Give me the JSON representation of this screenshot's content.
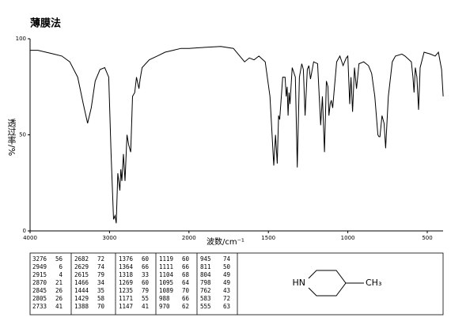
{
  "header": {
    "title": "薄膜法"
  },
  "chart_data": {
    "type": "line",
    "ylabel": "透过率/%",
    "xlabel": "波数/cm⁻¹",
    "color": "#000000",
    "xlim": [
      4000,
      400
    ],
    "xticks": [
      4000,
      3000,
      2000,
      1500,
      1000,
      500
    ],
    "ylim": [
      0,
      100
    ],
    "yticks": [
      0,
      50,
      100
    ],
    "x": [
      4000,
      3900,
      3800,
      3700,
      3600,
      3500,
      3400,
      3330,
      3276,
      3230,
      3180,
      3120,
      3060,
      3010,
      2980,
      2949,
      2930,
      2915,
      2895,
      2870,
      2858,
      2845,
      2825,
      2805,
      2780,
      2760,
      2733,
      2710,
      2682,
      2660,
      2629,
      2615,
      2590,
      2500,
      2400,
      2300,
      2200,
      2100,
      2000,
      1900,
      1800,
      1720,
      1680,
      1650,
      1620,
      1590,
      1560,
      1520,
      1490,
      1466,
      1455,
      1444,
      1436,
      1429,
      1410,
      1395,
      1388,
      1382,
      1376,
      1370,
      1364,
      1350,
      1330,
      1318,
      1305,
      1290,
      1280,
      1269,
      1255,
      1245,
      1235,
      1215,
      1190,
      1171,
      1160,
      1147,
      1135,
      1125,
      1119,
      1111,
      1104,
      1095,
      1089,
      1070,
      1050,
      1030,
      1010,
      1000,
      988,
      980,
      970,
      958,
      945,
      930,
      900,
      870,
      850,
      830,
      811,
      804,
      798,
      785,
      772,
      762,
      745,
      720,
      700,
      660,
      640,
      600,
      590,
      583,
      575,
      565,
      555,
      545,
      520,
      480,
      450,
      430,
      410,
      400
    ],
    "values": [
      94,
      94,
      93,
      92,
      91,
      88,
      80,
      66,
      56,
      64,
      78,
      84,
      85,
      80,
      40,
      6,
      8,
      4,
      30,
      21,
      32,
      26,
      40,
      26,
      50,
      45,
      41,
      70,
      72,
      80,
      74,
      79,
      85,
      89,
      91,
      93,
      94,
      95,
      95,
      95.5,
      96,
      95,
      91,
      88,
      90,
      89,
      91,
      88,
      70,
      34,
      50,
      35,
      60,
      58,
      80,
      80,
      70,
      75,
      60,
      72,
      66,
      85,
      80,
      33,
      80,
      87,
      84,
      60,
      84,
      86,
      79,
      88,
      87,
      55,
      70,
      41,
      78,
      75,
      60,
      66,
      68,
      64,
      70,
      88,
      91,
      86,
      90,
      91,
      66,
      80,
      62,
      85,
      74,
      87,
      88,
      86,
      82,
      70,
      50,
      49,
      49,
      60,
      56,
      43,
      70,
      88,
      91,
      92,
      91,
      88,
      80,
      72,
      85,
      80,
      63,
      85,
      93,
      92,
      91,
      93,
      84,
      70
    ]
  },
  "peak_table": [
    [
      [
        3276,
        56
      ],
      [
        2949,
        6
      ],
      [
        2915,
        4
      ],
      [
        2870,
        21
      ],
      [
        2845,
        26
      ],
      [
        2805,
        26
      ],
      [
        2733,
        41
      ]
    ],
    [
      [
        2682,
        72
      ],
      [
        2629,
        74
      ],
      [
        2615,
        79
      ],
      [
        1466,
        34
      ],
      [
        1444,
        35
      ],
      [
        1429,
        58
      ],
      [
        1388,
        70
      ]
    ],
    [
      [
        1376,
        60
      ],
      [
        1364,
        66
      ],
      [
        1318,
        33
      ],
      [
        1269,
        60
      ],
      [
        1235,
        79
      ],
      [
        1171,
        55
      ],
      [
        1147,
        41
      ]
    ],
    [
      [
        1119,
        60
      ],
      [
        1111,
        66
      ],
      [
        1104,
        68
      ],
      [
        1095,
        64
      ],
      [
        1089,
        70
      ],
      [
        988,
        66
      ],
      [
        970,
        62
      ]
    ],
    [
      [
        945,
        74
      ],
      [
        811,
        50
      ],
      [
        804,
        49
      ],
      [
        798,
        49
      ],
      [
        762,
        43
      ],
      [
        583,
        72
      ],
      [
        555,
        63
      ]
    ]
  ],
  "structure": {
    "labels": [
      "HN",
      "CH₃"
    ]
  }
}
